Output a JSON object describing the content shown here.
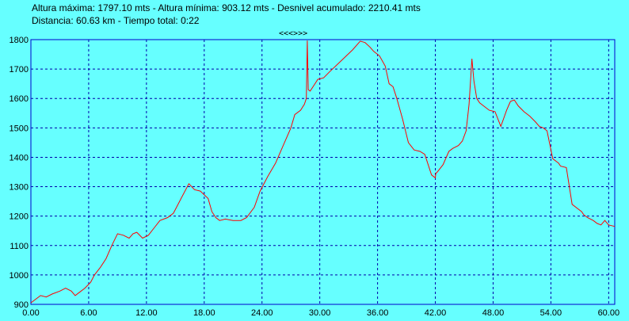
{
  "header": {
    "line1": "Altura máxima: 1797.10 mts - Altura mínima: 903.12 mts - Desnivel acumulado: 2210.41 mts",
    "line2": "Distancia: 60.63 km - Tiempo total: 0:22"
  },
  "nav_label": "<<<>>>",
  "colors": {
    "background": "#66ffff",
    "line": "#ff0000",
    "grid": "#0000aa",
    "frame": "#0000cc"
  },
  "chart_data": {
    "type": "line",
    "title": "",
    "xlabel": "",
    "ylabel": "",
    "xlim": [
      0,
      60.63
    ],
    "ylim": [
      900,
      1800
    ],
    "grid": true,
    "x_ticks": [
      "0.00",
      "6.00",
      "12.00",
      "18.00",
      "24.00",
      "30.00",
      "36.00",
      "42.00",
      "48.00",
      "54.00",
      "60.00"
    ],
    "y_ticks": [
      "900",
      "1000",
      "1100",
      "1200",
      "1300",
      "1400",
      "1500",
      "1600",
      "1700",
      "1800"
    ],
    "series": [
      {
        "x": [
          0,
          0.4,
          1.0,
          1.6,
          2.2,
          3.0,
          3.6,
          4.2,
          4.6,
          5.0,
          5.6,
          6.2,
          6.6,
          7.2,
          7.8,
          8.4,
          9.0,
          9.6,
          10.2,
          10.6,
          11.0,
          11.6,
          12.2,
          12.8,
          13.4,
          14.2,
          14.8,
          15.6,
          16.4,
          17.0,
          17.6,
          18.4,
          18.8,
          19.2,
          19.6,
          20.2,
          21.0,
          21.8,
          22.4,
          23.2,
          23.8,
          24.6,
          25.4,
          26.2,
          27.0,
          27.4,
          28.0,
          28.4,
          28.6,
          28.7,
          28.8,
          29.0,
          29.4,
          29.8,
          30.4,
          31.0,
          31.8,
          32.6,
          33.4,
          34.2,
          34.7,
          35.2,
          35.6,
          36.2,
          36.8,
          37.2,
          37.6,
          38.0,
          38.6,
          39.2,
          39.8,
          40.4,
          40.9,
          41.6,
          42.0,
          42.05,
          42.2,
          42.8,
          43.4,
          43.8,
          44.4,
          44.8,
          45.2,
          45.5,
          45.8,
          46.0,
          46.3,
          46.6,
          47.0,
          47.6,
          48.2,
          48.8,
          49.4,
          49.6,
          49.8,
          50.2,
          50.6,
          51.2,
          51.8,
          52.4,
          52.8,
          53.2,
          53.6,
          54.2,
          54.6,
          54.8,
          55.0,
          55.6,
          56.2,
          56.8,
          57.2,
          57.4,
          57.8,
          58.4,
          58.8,
          59.2,
          59.6,
          60.0,
          60.63
        ],
        "y": [
          905,
          915,
          930,
          925,
          935,
          945,
          955,
          945,
          930,
          940,
          955,
          975,
          1000,
          1025,
          1055,
          1100,
          1140,
          1135,
          1125,
          1140,
          1145,
          1125,
          1135,
          1160,
          1185,
          1195,
          1210,
          1260,
          1310,
          1290,
          1285,
          1260,
          1215,
          1195,
          1185,
          1190,
          1185,
          1185,
          1195,
          1230,
          1285,
          1335,
          1380,
          1440,
          1500,
          1545,
          1560,
          1580,
          1600,
          1797,
          1630,
          1625,
          1645,
          1665,
          1670,
          1690,
          1715,
          1740,
          1765,
          1795,
          1790,
          1775,
          1760,
          1745,
          1710,
          1650,
          1640,
          1600,
          1530,
          1450,
          1425,
          1420,
          1410,
          1340,
          1330,
          1345,
          1350,
          1375,
          1420,
          1430,
          1440,
          1455,
          1490,
          1580,
          1735,
          1660,
          1600,
          1585,
          1575,
          1560,
          1555,
          1505,
          1560,
          1575,
          1590,
          1595,
          1575,
          1555,
          1540,
          1520,
          1505,
          1500,
          1490,
          1395,
          1385,
          1380,
          1370,
          1365,
          1240,
          1225,
          1215,
          1205,
          1195,
          1185,
          1175,
          1170,
          1185,
          1170,
          1165
        ]
      }
    ]
  }
}
